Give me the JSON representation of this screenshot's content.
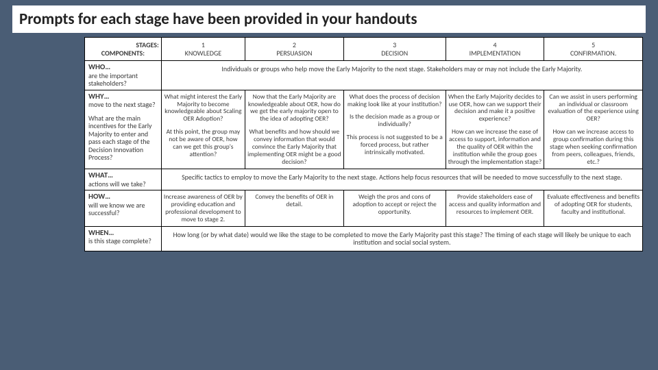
{
  "title": "Prompts for each stage have been provided in your handouts",
  "header": {
    "stages_label": "STAGES:",
    "components_label": "COMPONENTS:",
    "cols": [
      {
        "num": "1",
        "name": "KNOWLEDGE"
      },
      {
        "num": "2",
        "name": "PERSUASION"
      },
      {
        "num": "3",
        "name": "DECISION"
      },
      {
        "num": "4",
        "name": "IMPLEMENTATION"
      },
      {
        "num": "5",
        "name": "CONFIRMATION."
      }
    ]
  },
  "rows": {
    "who": {
      "head_big": "WHO…",
      "head_small": "are the important stakeholders?",
      "span_text": "Individuals or groups who help move the Early Majority to the next stage. Stakeholders may or may not include the Early Majority."
    },
    "why": {
      "head_big": "WHY…",
      "head_p1": "move to the next stage?",
      "head_p2": "What are the main incentives for the Early Majority to enter and pass each stage of the Decision Innovation Process?",
      "c1_p1": "What might interest the Early Majority to become knowledgeable about Scaling OER Adoption?",
      "c1_p2": "At this point, the group may not be aware of OER, how can we get this group's attention?",
      "c2_p1": "Now that the Early Majority are knowledgeable about OER, how do we get the early majority open to the idea of adopting OER?",
      "c2_p2": "What benefits and how should we convey information that would convince the Early Majority that implementing OER might be a good decision?",
      "c3_p1": "What does the process of decision making look like at your institution?",
      "c3_p2": "Is the decision made as a group or individually?",
      "c3_p3": "This process is not suggested to be a forced process, but rather intrinsically motivated.",
      "c4_p1": "When the Early Majority decides to use OER, how can we support their decision and make it a positive experience?",
      "c4_p2": "How can we increase the ease of access to support, information and the quality of OER within the institution while the group goes through the implementation stage?",
      "c5_p1": "Can we assist in users performing an individual or classroom evaluation of the experience using OER?",
      "c5_p2": "How can we increase access to group confirmation during this stage when seeking confirmation from peers, colleagues, friends, etc.?"
    },
    "what": {
      "head_big": "WHAT…",
      "head_small": "actions will we take?",
      "span_text": "Specific tactics to employ to move the Early Majority to the next stage. Actions help focus resources that will be needed to move successfully to the next stage."
    },
    "how": {
      "head_big": "HOW…",
      "head_small": "will we know we are successful?",
      "c1": "Increase awareness of OER by providing education and professional development to move to stage 2.",
      "c2": "Convey the benefits of OER in detail.",
      "c3": "Weigh the pros and cons of adoption to accept or reject the opportunity.",
      "c4": "Provide stakeholders ease of access and quality information and resources to implement OER.",
      "c5": "Evaluate effectiveness and benefits of adopting OER for students, faculty and institutional."
    },
    "when": {
      "head_big": "WHEN…",
      "head_small": "is this stage complete?",
      "span_text": "How long (or by what date) would we like the stage to be completed to move the Early Majority past this stage? The timing of each stage will likely be unique to each institution and social social system."
    }
  }
}
